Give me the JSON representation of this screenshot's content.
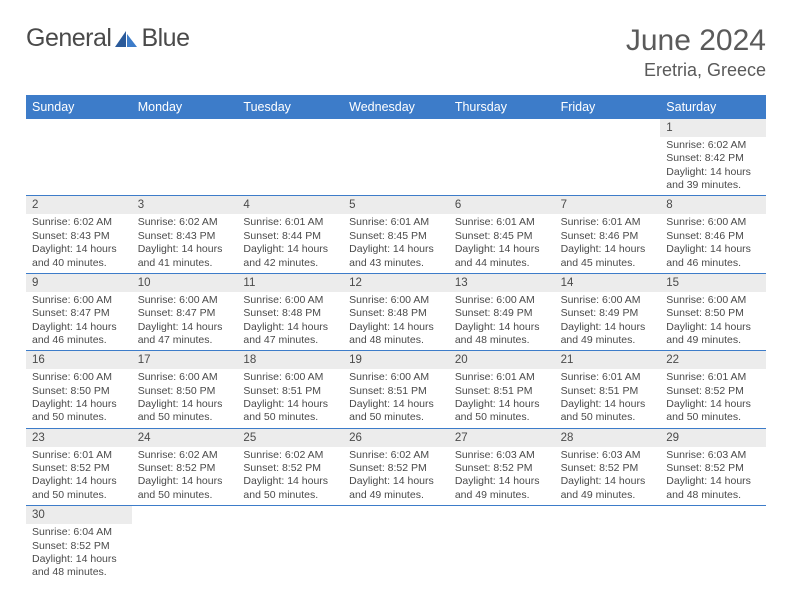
{
  "logo": {
    "word1": "General",
    "word2": "Blue"
  },
  "title": "June 2024",
  "location": "Eretria, Greece",
  "colors": {
    "header_bg": "#3d7cc9",
    "header_text": "#ffffff",
    "cell_border": "#3d7cc9",
    "gray_bg": "#ececec",
    "text": "#4a4a4a",
    "page_bg": "#ffffff"
  },
  "dayNames": [
    "Sunday",
    "Monday",
    "Tuesday",
    "Wednesday",
    "Thursday",
    "Friday",
    "Saturday"
  ],
  "layout": {
    "cols": 7,
    "rows": 6,
    "cell_font_size_pt": 8,
    "header_font_size_pt": 9.5
  },
  "weeks": [
    [
      {
        "empty": true
      },
      {
        "empty": true
      },
      {
        "empty": true
      },
      {
        "empty": true
      },
      {
        "empty": true
      },
      {
        "empty": true
      },
      {
        "n": "1",
        "sr": "Sunrise: 6:02 AM",
        "ss": "Sunset: 8:42 PM",
        "d1": "Daylight: 14 hours",
        "d2": "and 39 minutes."
      }
    ],
    [
      {
        "n": "2",
        "sr": "Sunrise: 6:02 AM",
        "ss": "Sunset: 8:43 PM",
        "d1": "Daylight: 14 hours",
        "d2": "and 40 minutes."
      },
      {
        "n": "3",
        "sr": "Sunrise: 6:02 AM",
        "ss": "Sunset: 8:43 PM",
        "d1": "Daylight: 14 hours",
        "d2": "and 41 minutes."
      },
      {
        "n": "4",
        "sr": "Sunrise: 6:01 AM",
        "ss": "Sunset: 8:44 PM",
        "d1": "Daylight: 14 hours",
        "d2": "and 42 minutes."
      },
      {
        "n": "5",
        "sr": "Sunrise: 6:01 AM",
        "ss": "Sunset: 8:45 PM",
        "d1": "Daylight: 14 hours",
        "d2": "and 43 minutes."
      },
      {
        "n": "6",
        "sr": "Sunrise: 6:01 AM",
        "ss": "Sunset: 8:45 PM",
        "d1": "Daylight: 14 hours",
        "d2": "and 44 minutes."
      },
      {
        "n": "7",
        "sr": "Sunrise: 6:01 AM",
        "ss": "Sunset: 8:46 PM",
        "d1": "Daylight: 14 hours",
        "d2": "and 45 minutes."
      },
      {
        "n": "8",
        "sr": "Sunrise: 6:00 AM",
        "ss": "Sunset: 8:46 PM",
        "d1": "Daylight: 14 hours",
        "d2": "and 46 minutes."
      }
    ],
    [
      {
        "n": "9",
        "sr": "Sunrise: 6:00 AM",
        "ss": "Sunset: 8:47 PM",
        "d1": "Daylight: 14 hours",
        "d2": "and 46 minutes."
      },
      {
        "n": "10",
        "sr": "Sunrise: 6:00 AM",
        "ss": "Sunset: 8:47 PM",
        "d1": "Daylight: 14 hours",
        "d2": "and 47 minutes."
      },
      {
        "n": "11",
        "sr": "Sunrise: 6:00 AM",
        "ss": "Sunset: 8:48 PM",
        "d1": "Daylight: 14 hours",
        "d2": "and 47 minutes."
      },
      {
        "n": "12",
        "sr": "Sunrise: 6:00 AM",
        "ss": "Sunset: 8:48 PM",
        "d1": "Daylight: 14 hours",
        "d2": "and 48 minutes."
      },
      {
        "n": "13",
        "sr": "Sunrise: 6:00 AM",
        "ss": "Sunset: 8:49 PM",
        "d1": "Daylight: 14 hours",
        "d2": "and 48 minutes."
      },
      {
        "n": "14",
        "sr": "Sunrise: 6:00 AM",
        "ss": "Sunset: 8:49 PM",
        "d1": "Daylight: 14 hours",
        "d2": "and 49 minutes."
      },
      {
        "n": "15",
        "sr": "Sunrise: 6:00 AM",
        "ss": "Sunset: 8:50 PM",
        "d1": "Daylight: 14 hours",
        "d2": "and 49 minutes."
      }
    ],
    [
      {
        "n": "16",
        "sr": "Sunrise: 6:00 AM",
        "ss": "Sunset: 8:50 PM",
        "d1": "Daylight: 14 hours",
        "d2": "and 50 minutes."
      },
      {
        "n": "17",
        "sr": "Sunrise: 6:00 AM",
        "ss": "Sunset: 8:50 PM",
        "d1": "Daylight: 14 hours",
        "d2": "and 50 minutes."
      },
      {
        "n": "18",
        "sr": "Sunrise: 6:00 AM",
        "ss": "Sunset: 8:51 PM",
        "d1": "Daylight: 14 hours",
        "d2": "and 50 minutes."
      },
      {
        "n": "19",
        "sr": "Sunrise: 6:00 AM",
        "ss": "Sunset: 8:51 PM",
        "d1": "Daylight: 14 hours",
        "d2": "and 50 minutes."
      },
      {
        "n": "20",
        "sr": "Sunrise: 6:01 AM",
        "ss": "Sunset: 8:51 PM",
        "d1": "Daylight: 14 hours",
        "d2": "and 50 minutes."
      },
      {
        "n": "21",
        "sr": "Sunrise: 6:01 AM",
        "ss": "Sunset: 8:51 PM",
        "d1": "Daylight: 14 hours",
        "d2": "and 50 minutes."
      },
      {
        "n": "22",
        "sr": "Sunrise: 6:01 AM",
        "ss": "Sunset: 8:52 PM",
        "d1": "Daylight: 14 hours",
        "d2": "and 50 minutes."
      }
    ],
    [
      {
        "n": "23",
        "sr": "Sunrise: 6:01 AM",
        "ss": "Sunset: 8:52 PM",
        "d1": "Daylight: 14 hours",
        "d2": "and 50 minutes."
      },
      {
        "n": "24",
        "sr": "Sunrise: 6:02 AM",
        "ss": "Sunset: 8:52 PM",
        "d1": "Daylight: 14 hours",
        "d2": "and 50 minutes."
      },
      {
        "n": "25",
        "sr": "Sunrise: 6:02 AM",
        "ss": "Sunset: 8:52 PM",
        "d1": "Daylight: 14 hours",
        "d2": "and 50 minutes."
      },
      {
        "n": "26",
        "sr": "Sunrise: 6:02 AM",
        "ss": "Sunset: 8:52 PM",
        "d1": "Daylight: 14 hours",
        "d2": "and 49 minutes."
      },
      {
        "n": "27",
        "sr": "Sunrise: 6:03 AM",
        "ss": "Sunset: 8:52 PM",
        "d1": "Daylight: 14 hours",
        "d2": "and 49 minutes."
      },
      {
        "n": "28",
        "sr": "Sunrise: 6:03 AM",
        "ss": "Sunset: 8:52 PM",
        "d1": "Daylight: 14 hours",
        "d2": "and 49 minutes."
      },
      {
        "n": "29",
        "sr": "Sunrise: 6:03 AM",
        "ss": "Sunset: 8:52 PM",
        "d1": "Daylight: 14 hours",
        "d2": "and 48 minutes."
      }
    ],
    [
      {
        "n": "30",
        "sr": "Sunrise: 6:04 AM",
        "ss": "Sunset: 8:52 PM",
        "d1": "Daylight: 14 hours",
        "d2": "and 48 minutes."
      },
      {
        "empty": true
      },
      {
        "empty": true
      },
      {
        "empty": true
      },
      {
        "empty": true
      },
      {
        "empty": true
      },
      {
        "empty": true
      }
    ]
  ]
}
